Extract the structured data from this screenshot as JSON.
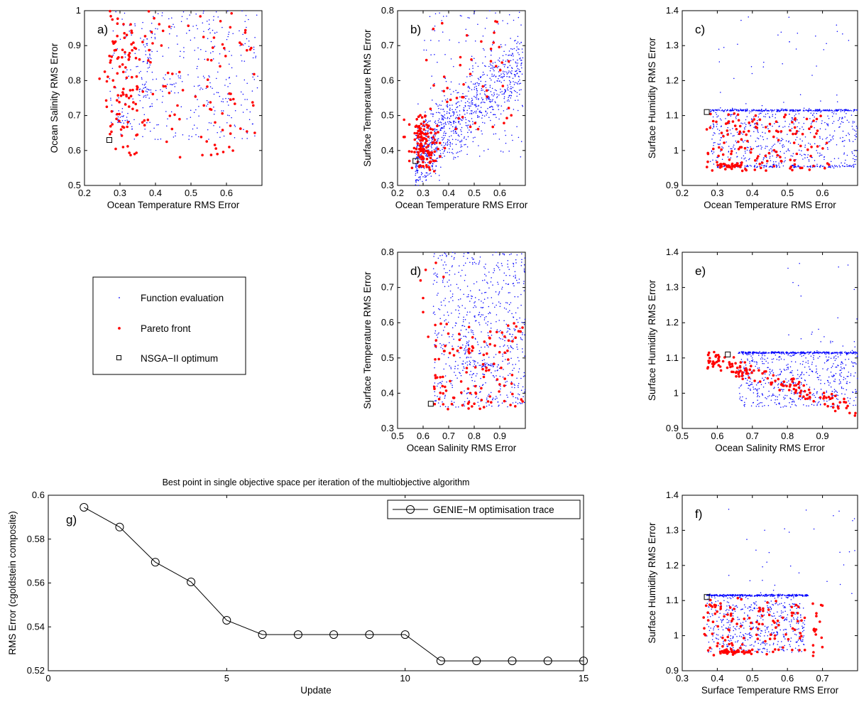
{
  "colors": {
    "function_evaluation": "#0000ff",
    "pareto_front": "#ff0000",
    "optimum": "#000000",
    "trace": "#000000"
  },
  "legend": {
    "function_evaluation": "Function evaluation",
    "pareto_front": "Pareto front",
    "optimum": "NSGA−II optimum"
  },
  "chart_data": [
    {
      "id": "a",
      "type": "scatter",
      "panel_label": "a)",
      "xlabel": "Ocean Temperature RMS Error",
      "ylabel": "Ocean Salinity RMS Error",
      "xlim": [
        0.2,
        0.7
      ],
      "ylim": [
        0.5,
        1.0
      ],
      "xticks": [
        "0.2",
        "0.3",
        "0.4",
        "0.5",
        "0.6"
      ],
      "yticks": [
        "0.5",
        "0.6",
        "0.7",
        "0.8",
        "0.9",
        "1"
      ],
      "optimum": [
        0.27,
        0.63
      ],
      "series": [
        {
          "name": "Function evaluation",
          "point_count": 520,
          "cloud": {
            "x_range": [
              0.27,
              0.69
            ],
            "y_range": [
              0.63,
              1.0
            ]
          },
          "clusters": [
            {
              "x": 0.38,
              "y": 0.88,
              "dx": 0.006,
              "dy": 0.025,
              "n": 22
            },
            {
              "x": 0.37,
              "y": 0.77,
              "dx": 0.012,
              "dy": 0.012,
              "n": 22
            },
            {
              "x": 0.31,
              "y": 0.69,
              "dx": 0.015,
              "dy": 0.01,
              "n": 18
            }
          ]
        },
        {
          "name": "Pareto front",
          "point_count": 150,
          "cloud": {
            "x_range": [
              0.27,
              0.68
            ],
            "y_range": [
              0.58,
              1.0
            ]
          },
          "clusters": [
            {
              "x": 0.32,
              "y": 0.9,
              "dx": 0.04,
              "dy": 0.05,
              "n": 45
            },
            {
              "x": 0.31,
              "y": 0.72,
              "dx": 0.035,
              "dy": 0.05,
              "n": 40
            }
          ]
        }
      ]
    },
    {
      "id": "b",
      "type": "scatter",
      "panel_label": "b)",
      "xlabel": "Ocean Temperature RMS Error",
      "ylabel": "Surface Temperature RMS Error",
      "xlim": [
        0.2,
        0.7
      ],
      "ylim": [
        0.3,
        0.8
      ],
      "xticks": [
        "0.2",
        "0.3",
        "0.4",
        "0.5",
        "0.6"
      ],
      "yticks": [
        "0.3",
        "0.4",
        "0.5",
        "0.6",
        "0.7",
        "0.8"
      ],
      "optimum": [
        0.27,
        0.37
      ],
      "series": [
        {
          "name": "Function evaluation",
          "point_count": 1100,
          "trend": {
            "x_range": [
              0.27,
              0.69
            ],
            "y_at_start": 0.38,
            "y_at_end": 0.65,
            "spread": 0.05,
            "n": 900
          },
          "cloud": {
            "x_range": [
              0.3,
              0.69
            ],
            "y_range": [
              0.38,
              0.8
            ],
            "n": 140
          }
        },
        {
          "name": "Pareto front",
          "point_count": 190,
          "clusters": [
            {
              "x": 0.3,
              "y": 0.42,
              "dx": 0.03,
              "dy": 0.04,
              "n": 130
            }
          ],
          "cloud": {
            "x_range": [
              0.3,
              0.65
            ],
            "y_range": [
              0.45,
              0.78
            ],
            "n": 45
          }
        }
      ]
    },
    {
      "id": "c",
      "type": "scatter",
      "panel_label": "c)",
      "xlabel": "Ocean Temperature RMS Error",
      "ylabel": "Surface Humidity RMS Error",
      "xlim": [
        0.2,
        0.7
      ],
      "ylim": [
        0.9,
        1.4
      ],
      "xticks": [
        "0.2",
        "0.3",
        "0.4",
        "0.5",
        "0.6"
      ],
      "yticks": [
        "0.9",
        "1",
        "1.1",
        "1.2",
        "1.3",
        "1.4"
      ],
      "optimum": [
        0.27,
        1.11
      ],
      "series": [
        {
          "name": "Function evaluation",
          "point_count": 1000,
          "band": {
            "x_range": [
              0.28,
              0.7
            ],
            "y": 1.115,
            "n": 320
          },
          "band2": {
            "x_range": [
              0.3,
              0.7
            ],
            "y": 0.955,
            "n": 120
          },
          "cloud": {
            "x_range": [
              0.28,
              0.7
            ],
            "y_range": [
              0.95,
              1.115
            ],
            "n": 500
          },
          "outliers": {
            "x_range": [
              0.3,
              0.69
            ],
            "y_range": [
              1.12,
              1.4
            ],
            "n": 40
          }
        },
        {
          "name": "Pareto front",
          "point_count": 170,
          "cloud": {
            "x_range": [
              0.27,
              0.62
            ],
            "y_range": [
              0.94,
              1.11
            ],
            "n": 130
          },
          "clusters": [
            {
              "x": 0.34,
              "y": 0.955,
              "dx": 0.02,
              "dy": 0.004,
              "n": 35
            }
          ]
        }
      ]
    },
    {
      "id": "d",
      "type": "scatter",
      "panel_label": "d)",
      "xlabel": "Ocean Salinity RMS Error",
      "ylabel": "Surface Temperature RMS Error",
      "xlim": [
        0.5,
        1.0
      ],
      "ylim": [
        0.3,
        0.8
      ],
      "xticks": [
        "0.5",
        "0.6",
        "0.7",
        "0.8",
        "0.9"
      ],
      "yticks": [
        "0.3",
        "0.4",
        "0.5",
        "0.6",
        "0.7",
        "0.8"
      ],
      "optimum": [
        0.63,
        0.37
      ],
      "series": [
        {
          "name": "Function evaluation",
          "point_count": 700,
          "cloud": {
            "x_range": [
              0.64,
              1.0
            ],
            "y_range": [
              0.36,
              0.8
            ],
            "n": 640
          },
          "clusters": [
            {
              "x": 0.85,
              "y": 0.48,
              "dx": 0.02,
              "dy": 0.003,
              "n": 30
            },
            {
              "x": 0.77,
              "y": 0.52,
              "dx": 0.008,
              "dy": 0.03,
              "n": 30
            }
          ]
        },
        {
          "name": "Pareto front",
          "point_count": 130,
          "cloud": {
            "x_range": [
              0.64,
              0.99
            ],
            "y_range": [
              0.35,
              0.6
            ],
            "n": 115
          },
          "extra": [
            [
              0.61,
              0.75
            ],
            [
              0.59,
              0.72
            ],
            [
              0.6,
              0.67
            ],
            [
              0.6,
              0.63
            ],
            [
              0.62,
              0.56
            ],
            [
              0.65,
              0.77
            ],
            [
              0.68,
              0.73
            ]
          ]
        }
      ]
    },
    {
      "id": "e",
      "type": "scatter",
      "panel_label": "e)",
      "xlabel": "Ocean Salinity RMS Error",
      "ylabel": "Surface Humidity RMS Error",
      "xlim": [
        0.5,
        1.0
      ],
      "ylim": [
        0.9,
        1.4
      ],
      "xticks": [
        "0.5",
        "0.6",
        "0.7",
        "0.8",
        "0.9"
      ],
      "yticks": [
        "0.9",
        "1",
        "1.1",
        "1.2",
        "1.3",
        "1.4"
      ],
      "optimum": [
        0.63,
        1.11
      ],
      "series": [
        {
          "name": "Function evaluation",
          "point_count": 900,
          "band": {
            "x_range": [
              0.66,
              1.0
            ],
            "y": 1.115,
            "n": 320
          },
          "cloud": {
            "x_range": [
              0.66,
              1.0
            ],
            "y_range": [
              0.96,
              1.115
            ],
            "n": 520
          },
          "outliers": {
            "x_range": [
              0.8,
              1.0
            ],
            "y_range": [
              1.12,
              1.38
            ],
            "n": 25
          }
        },
        {
          "name": "Pareto front",
          "point_count": 160,
          "trend": {
            "x_range": [
              0.57,
              1.0
            ],
            "y_at_start": 1.1,
            "y_at_end": 0.955,
            "spread": 0.012,
            "n": 150
          }
        }
      ]
    },
    {
      "id": "f",
      "type": "scatter",
      "panel_label": "f)",
      "xlabel": "Surface Temperature RMS Error",
      "ylabel": "Surface Humidity RMS Error",
      "xlim": [
        0.3,
        0.8
      ],
      "ylim": [
        0.9,
        1.4
      ],
      "xticks": [
        "0.3",
        "0.4",
        "0.5",
        "0.6",
        "0.7"
      ],
      "yticks": [
        "0.9",
        "1",
        "1.1",
        "1.2",
        "1.3",
        "1.4"
      ],
      "optimum": [
        0.37,
        1.11
      ],
      "series": [
        {
          "name": "Function evaluation",
          "point_count": 900,
          "band": {
            "x_range": [
              0.37,
              0.66
            ],
            "y": 1.115,
            "n": 340
          },
          "cloud": {
            "x_range": [
              0.37,
              0.65
            ],
            "y_range": [
              0.95,
              1.115
            ],
            "n": 480
          },
          "outliers": {
            "x_range": [
              0.42,
              0.8
            ],
            "y_range": [
              1.12,
              1.4
            ],
            "n": 30
          }
        },
        {
          "name": "Pareto front",
          "point_count": 170,
          "cloud": {
            "x_range": [
              0.36,
              0.7
            ],
            "y_range": [
              0.94,
              1.11
            ],
            "n": 130
          },
          "clusters": [
            {
              "x": 0.45,
              "y": 0.955,
              "dx": 0.025,
              "dy": 0.004,
              "n": 40
            }
          ]
        }
      ]
    },
    {
      "id": "g",
      "type": "line",
      "panel_label": "g)",
      "title": "Best point in single objective space per iteration of the multiobjective algorithm",
      "xlabel": "Update",
      "ylabel": "RMS Error (cgoldstein composite)",
      "xlim": [
        0,
        15
      ],
      "ylim": [
        0.52,
        0.6
      ],
      "xticks": [
        "0",
        "5",
        "10",
        "15"
      ],
      "yticks": [
        "0.52",
        "0.54",
        "0.56",
        "0.58",
        "0.6"
      ],
      "legend_position": "top-right",
      "series": [
        {
          "name": "GENIE−M optimisation trace",
          "x": [
            1,
            2,
            3,
            4,
            5,
            6,
            7,
            8,
            9,
            10,
            11,
            12,
            13,
            14,
            15
          ],
          "y": [
            0.5945,
            0.5855,
            0.5695,
            0.5605,
            0.543,
            0.5365,
            0.5365,
            0.5365,
            0.5365,
            0.5365,
            0.5245,
            0.5245,
            0.5245,
            0.5245,
            0.5245
          ]
        }
      ]
    }
  ]
}
